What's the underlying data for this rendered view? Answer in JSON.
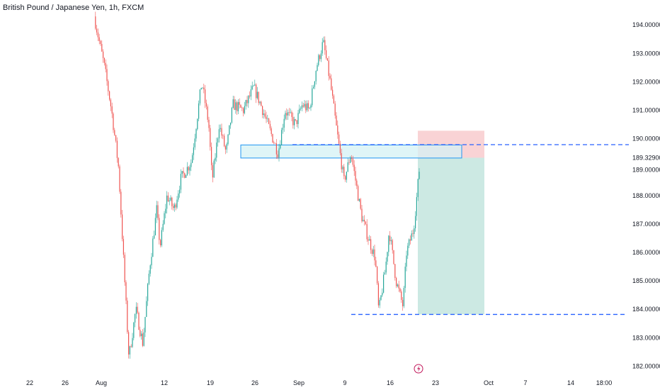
{
  "header": {
    "title": "British Pound / Japanese Yen, 1h, FXCM"
  },
  "colors": {
    "up": "#26a69a",
    "down": "#ef5350",
    "level_line": "#2962ff",
    "zone_fill": "#d4f1f4",
    "zone_border": "#2196f3",
    "profit": "#cce9e3",
    "loss": "#f9d3d5",
    "event_icon": "#c2185b"
  },
  "icons": {
    "event_marker": "lightning-icon"
  },
  "chart_data": {
    "type": "candlestick",
    "title": "British Pound / Japanese Yen, 1h, FXCM",
    "ylim": [
      181.9,
      194.3
    ],
    "price_axis_ticks": [
      "194.00000",
      "193.00000",
      "192.00000",
      "191.00000",
      "190.00000",
      "189.00000",
      "188.00000",
      "187.00000",
      "186.00000",
      "185.00000",
      "184.00000",
      "183.00000",
      "182.00000"
    ],
    "tick_values": [
      194,
      193,
      192,
      191,
      190,
      189,
      188,
      187,
      186,
      185,
      184,
      183,
      182
    ],
    "current_price_label": "189.32900",
    "current_price": 189.329,
    "time_axis_ticks": [
      "22",
      "26",
      "Aug",
      "12",
      "19",
      "26",
      "Sep",
      "9",
      "16",
      "23",
      "Oct",
      "7",
      "14",
      "18:00"
    ],
    "price_path": [
      [
        0,
        194.3
      ],
      [
        3,
        192.5
      ],
      [
        5,
        191.0
      ],
      [
        7,
        189.0
      ],
      [
        10,
        182.3
      ],
      [
        12,
        184.0
      ],
      [
        14,
        182.8
      ],
      [
        16,
        185.5
      ],
      [
        18,
        187.5
      ],
      [
        19,
        186.2
      ],
      [
        21,
        188.0
      ],
      [
        23,
        187.5
      ],
      [
        25,
        188.6
      ],
      [
        28,
        189.2
      ],
      [
        31,
        192.0
      ],
      [
        33,
        190.5
      ],
      [
        34,
        188.5
      ],
      [
        36,
        190.5
      ],
      [
        38,
        189.5
      ],
      [
        40,
        191.2
      ],
      [
        43,
        191.0
      ],
      [
        46,
        191.8
      ],
      [
        48,
        191.2
      ],
      [
        50,
        190.5
      ],
      [
        53,
        189.5
      ],
      [
        55,
        191.0
      ],
      [
        58,
        190.5
      ],
      [
        60,
        191.2
      ],
      [
        62,
        191.0
      ],
      [
        64,
        192.5
      ],
      [
        66,
        193.4
      ],
      [
        68,
        192.0
      ],
      [
        70,
        190.2
      ],
      [
        72,
        188.5
      ],
      [
        74,
        189.5
      ],
      [
        77,
        187.3
      ],
      [
        79,
        186.5
      ],
      [
        81,
        185.8
      ],
      [
        82,
        183.9
      ],
      [
        84,
        185.5
      ],
      [
        85,
        186.8
      ],
      [
        87,
        185.0
      ],
      [
        89,
        184.1
      ],
      [
        90,
        186.0
      ],
      [
        92,
        186.8
      ],
      [
        93,
        188.0
      ],
      [
        94,
        189.33
      ]
    ],
    "horizontal_levels": [
      189.79,
      183.82
    ],
    "supply_zone": {
      "top": 189.78,
      "bottom": 189.32
    },
    "short_position": {
      "entry": 189.33,
      "stop": 190.28,
      "target": 183.82
    }
  }
}
